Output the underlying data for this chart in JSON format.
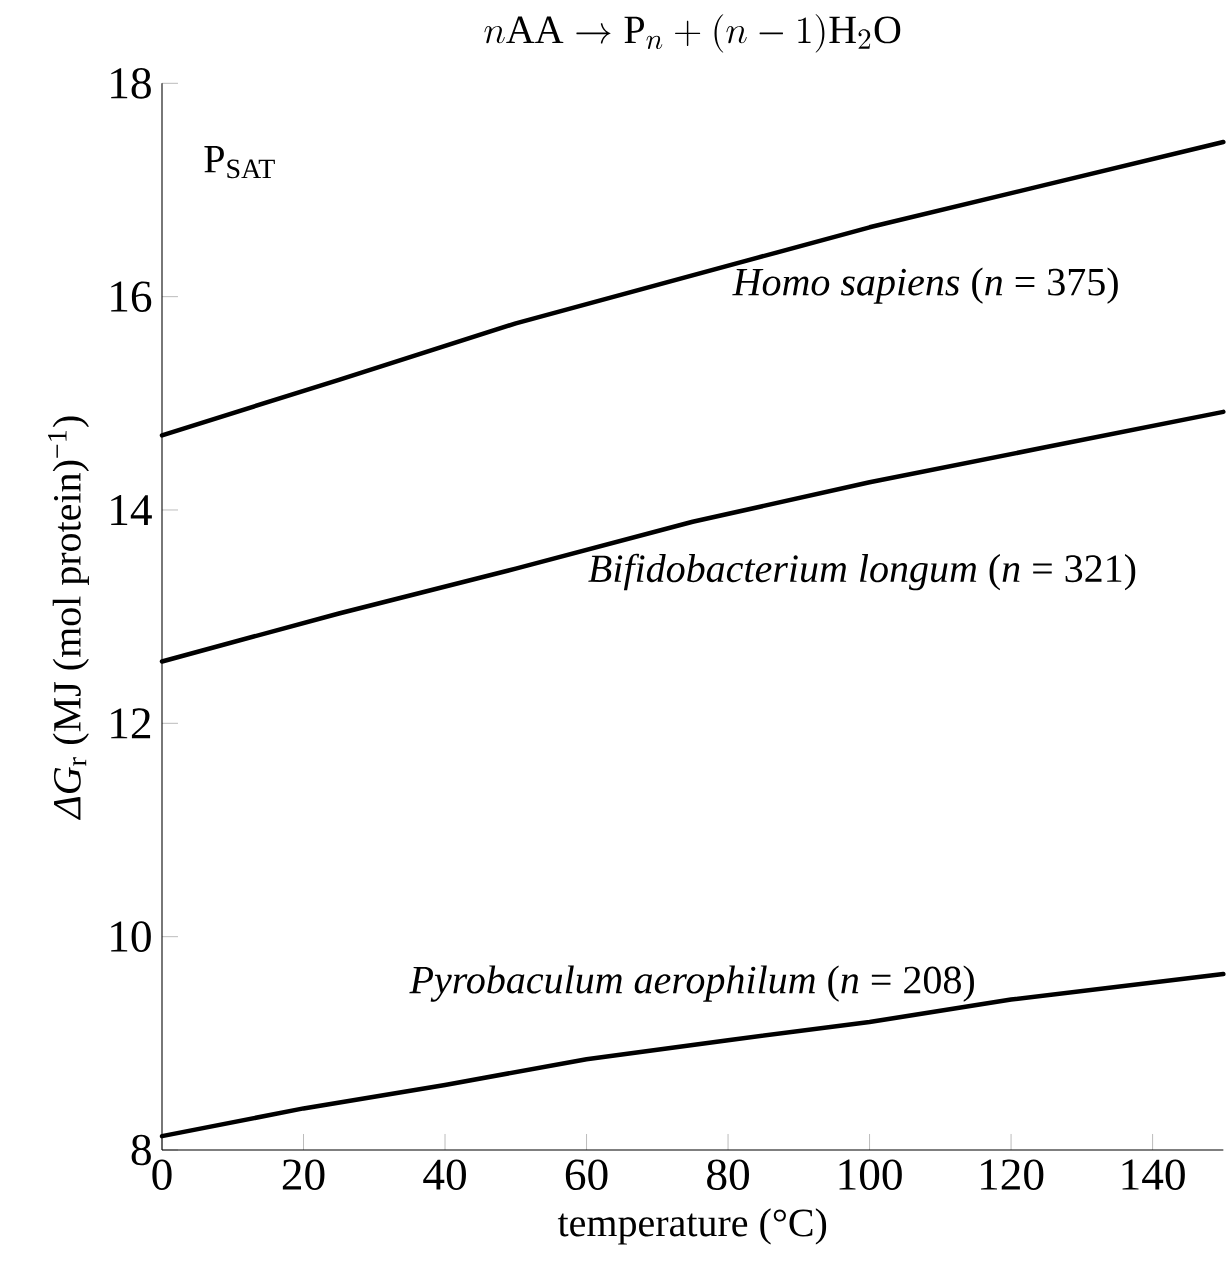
{
  "chart_data": {
    "type": "line",
    "title": "n\\mathrm{AA}\\rightarrow\\mathrm{P}_{n}+(n-1)\\mathrm{H}_{2}\\mathrm{O}",
    "xlabel": "temperature (°C)",
    "ylabel": "*ΔG*$_{r}$ (MJ (mol protein)$^{−1}$)",
    "annotations": [
      "P$_{SAT}$"
    ],
    "x": [
      0,
      20,
      25,
      40,
      50,
      60,
      75,
      80,
      100,
      120,
      125,
      150
    ],
    "series": [
      {
        "name": "*Homo sapiens* (*n* = 375)",
        "color": "#000000",
        "values": [
          14.7,
          null,
          15.22,
          null,
          15.75,
          null,
          16.2,
          null,
          16.65,
          null,
          17.05,
          17.45
        ]
      },
      {
        "name": "*Bifidobacterium longum* (*n* = 321)",
        "color": "#000000",
        "values": [
          12.58,
          null,
          13.03,
          null,
          13.45,
          null,
          13.89,
          null,
          14.26,
          null,
          14.59,
          14.92
        ]
      },
      {
        "name": "*Pyrobaculum aerophilum* (*n* = 208)",
        "color": "#000000",
        "values": [
          8.13,
          8.39,
          null,
          8.61,
          null,
          8.85,
          null,
          9.03,
          9.2,
          9.41,
          null,
          9.65
        ]
      }
    ],
    "xlim": [
      0,
      150
    ],
    "ylim": [
      8,
      18
    ],
    "xticks": [
      0,
      20,
      40,
      60,
      80,
      100,
      120,
      140
    ],
    "yticks": [
      8,
      10,
      12,
      14,
      16,
      18
    ],
    "line_style": "solid",
    "legend": false,
    "grid": false
  }
}
